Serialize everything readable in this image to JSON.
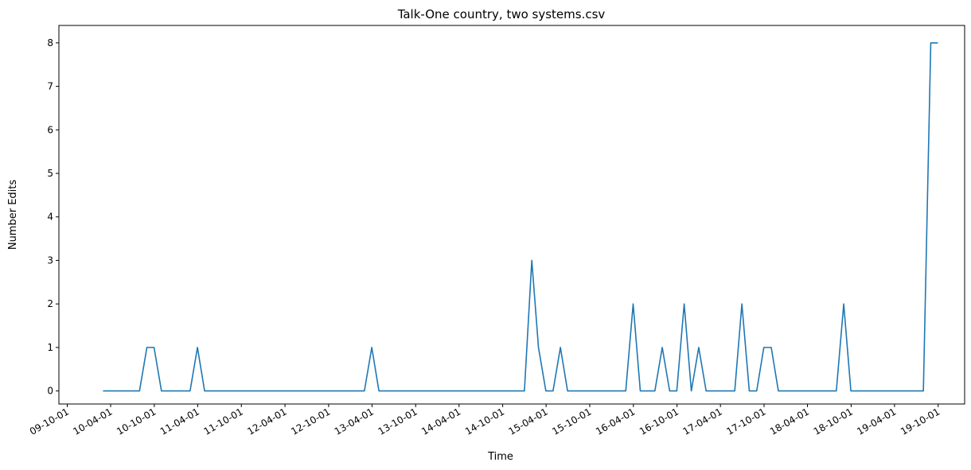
{
  "chart_data": {
    "type": "line",
    "title": "Talk-One country, two systems.csv",
    "xlabel": "Time",
    "ylabel": "Number Edits",
    "ylim": [
      -0.3,
      8.4
    ],
    "xlim": [
      "2009-08-27",
      "2020-01-20"
    ],
    "grid": false,
    "legend": "none",
    "x_tick_labels": [
      "09-10-01",
      "10-04-01",
      "10-10-01",
      "11-04-01",
      "11-10-01",
      "12-04-01",
      "12-10-01",
      "13-04-01",
      "13-10-01",
      "14-04-01",
      "14-10-01",
      "15-04-01",
      "15-10-01",
      "16-04-01",
      "16-10-01",
      "17-04-01",
      "17-10-01",
      "18-04-01",
      "18-10-01",
      "19-04-01",
      "19-10-01"
    ],
    "x_ticks": [
      "2009-10-01",
      "2010-04-01",
      "2010-10-01",
      "2011-04-01",
      "2011-10-01",
      "2012-04-01",
      "2012-10-01",
      "2013-04-01",
      "2013-10-01",
      "2014-04-01",
      "2014-10-01",
      "2015-04-01",
      "2015-10-01",
      "2016-04-01",
      "2016-10-01",
      "2017-04-01",
      "2017-10-01",
      "2018-04-01",
      "2018-10-01",
      "2019-04-01",
      "2019-10-01"
    ],
    "y_ticks": [
      0,
      1,
      2,
      3,
      4,
      5,
      6,
      7,
      8
    ],
    "series": [
      {
        "color": "#1f77b4",
        "x": [
          "2010-02-28",
          "2010-07-31",
          "2010-08-31",
          "2010-09-30",
          "2010-10-31",
          "2011-01-31",
          "2011-02-28",
          "2011-03-31",
          "2011-04-30",
          "2013-02-28",
          "2013-03-31",
          "2013-04-30",
          "2014-12-31",
          "2015-01-31",
          "2015-02-28",
          "2015-03-31",
          "2015-04-30",
          "2015-05-31",
          "2015-06-30",
          "2015-07-31",
          "2016-02-29",
          "2016-03-31",
          "2016-04-30",
          "2016-05-31",
          "2016-06-30",
          "2016-07-31",
          "2016-08-31",
          "2016-09-30",
          "2016-10-31",
          "2016-11-30",
          "2016-12-31",
          "2017-01-31",
          "2017-02-28",
          "2017-03-31",
          "2017-05-31",
          "2017-06-30",
          "2017-07-31",
          "2017-08-31",
          "2017-09-30",
          "2017-10-31",
          "2017-11-30",
          "2017-12-31",
          "2018-01-31",
          "2018-02-28",
          "2018-07-31",
          "2018-08-31",
          "2018-09-30",
          "2019-07-31",
          "2019-08-31",
          "2019-09-30"
        ],
        "y": [
          0,
          0,
          1,
          1,
          0,
          0,
          0,
          1,
          0,
          0,
          1,
          0,
          0,
          3,
          1,
          0,
          0,
          1,
          0,
          0,
          0,
          2,
          0,
          0,
          0,
          1,
          0,
          0,
          2,
          0,
          1,
          0,
          0,
          0,
          0,
          2,
          0,
          0,
          1,
          1,
          0,
          0,
          0,
          0,
          0,
          2,
          0,
          0,
          8,
          8
        ]
      }
    ]
  }
}
